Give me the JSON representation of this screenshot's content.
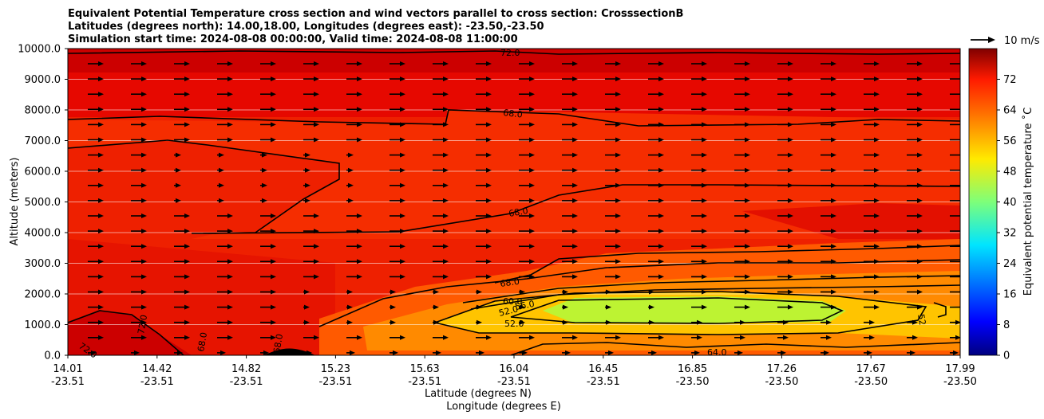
{
  "chart_data": {
    "type": "heatmap",
    "title_lines": [
      "Equivalent Potential Temperature cross section and wind vectors parallel to cross section: CrosssectionB",
      "Latitudes (degrees north): 14.00,18.00, Longitudes (degrees east): -23.50,-23.50",
      "Simulation start time: 2024-08-08 00:00:00, Valid time: 2024-08-08 11:00:00"
    ],
    "ylabel": "Altitude (meters)",
    "xlabel_lat": "Latitude (degrees N)",
    "xlabel_lon": "Longitude (degrees E)",
    "ylim": [
      0,
      10000
    ],
    "yticks": [
      {
        "value": 0,
        "label": "0.0"
      },
      {
        "value": 1000,
        "label": "1000.0"
      },
      {
        "value": 2000,
        "label": "2000.0"
      },
      {
        "value": 3000,
        "label": "3000.0"
      },
      {
        "value": 4000,
        "label": "4000.0"
      },
      {
        "value": 5000,
        "label": "5000.0"
      },
      {
        "value": 6000,
        "label": "6000.0"
      },
      {
        "value": 7000,
        "label": "7000.0"
      },
      {
        "value": 8000,
        "label": "8000.0"
      },
      {
        "value": 9000,
        "label": "9000.0"
      },
      {
        "value": 10000,
        "label": "10000.0"
      }
    ],
    "xticks": [
      {
        "frac": 0.0,
        "lat": "14.01",
        "lon": "-23.51"
      },
      {
        "frac": 0.1,
        "lat": "14.42",
        "lon": "-23.51"
      },
      {
        "frac": 0.2,
        "lat": "14.82",
        "lon": "-23.51"
      },
      {
        "frac": 0.3,
        "lat": "15.23",
        "lon": "-23.51"
      },
      {
        "frac": 0.4,
        "lat": "15.63",
        "lon": "-23.51"
      },
      {
        "frac": 0.5,
        "lat": "16.04",
        "lon": "-23.51"
      },
      {
        "frac": 0.6,
        "lat": "16.45",
        "lon": "-23.51"
      },
      {
        "frac": 0.7,
        "lat": "16.85",
        "lon": "-23.50"
      },
      {
        "frac": 0.8,
        "lat": "17.26",
        "lon": "-23.50"
      },
      {
        "frac": 0.9,
        "lat": "17.67",
        "lon": "-23.50"
      },
      {
        "frac": 1.0,
        "lat": "17.99",
        "lon": "-23.50"
      }
    ],
    "colorbar": {
      "label": "Equivalent potential temperature ˚C",
      "range": [
        0,
        80
      ],
      "ticks": [
        "0",
        "8",
        "16",
        "24",
        "32",
        "40",
        "48",
        "56",
        "64",
        "72"
      ]
    },
    "contour_labels": [
      "72.0",
      "68.0",
      "68.0",
      "68.0",
      "60.0",
      "56.0",
      "52.0",
      "52.0",
      "64.0",
      "72.0",
      "68.0",
      "68.0",
      "72.0",
      "52"
    ],
    "quiver_key": "10 m/s",
    "wind_direction": "northward along section"
  },
  "colors": {
    "background": "#ffffff",
    "contour": "#000000",
    "arrow": "#000000"
  }
}
